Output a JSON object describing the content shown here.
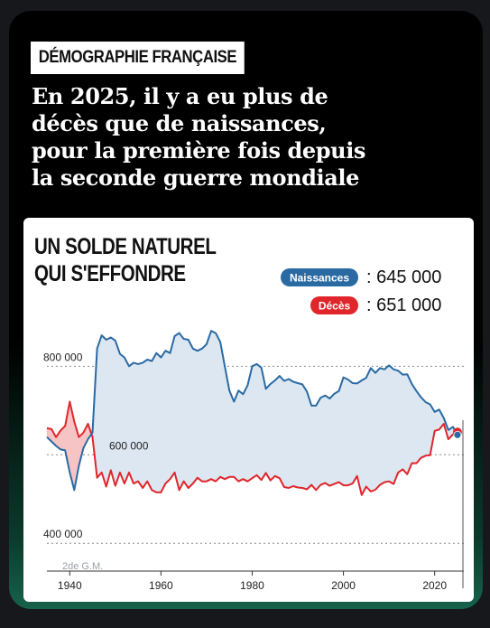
{
  "kicker": "DÉMOGRAPHIE FRANÇAISE",
  "headline": {
    "lines": [
      "En 2025, il y a eu plus de",
      "décès que de naissances,",
      "pour la première fois depuis",
      "la seconde guerre mondiale"
    ]
  },
  "colors": {
    "births": "#2a6aa3",
    "deaths": "#e0262b",
    "births_fill": "#dce7f1",
    "deaths_fill": "#f6c4c4",
    "background": "#000000",
    "card": "#ffffff"
  },
  "chart_data": {
    "type": "line",
    "title": [
      "UN SOLDE NATUREL",
      "QUI S'EFFONDRE"
    ],
    "annotation": "2de G.M.",
    "x": [
      1935,
      1936,
      1937,
      1938,
      1939,
      1940,
      1941,
      1942,
      1943,
      1944,
      1945,
      1946,
      1947,
      1948,
      1949,
      1950,
      1951,
      1952,
      1953,
      1954,
      1955,
      1956,
      1957,
      1958,
      1959,
      1960,
      1961,
      1962,
      1963,
      1964,
      1965,
      1966,
      1967,
      1968,
      1969,
      1970,
      1971,
      1972,
      1973,
      1974,
      1975,
      1976,
      1977,
      1978,
      1979,
      1980,
      1981,
      1982,
      1983,
      1984,
      1985,
      1986,
      1987,
      1988,
      1989,
      1990,
      1991,
      1992,
      1993,
      1994,
      1995,
      1996,
      1997,
      1998,
      1999,
      2000,
      2001,
      2002,
      2003,
      2004,
      2005,
      2006,
      2007,
      2008,
      2009,
      2010,
      2011,
      2012,
      2013,
      2014,
      2015,
      2016,
      2017,
      2018,
      2019,
      2020,
      2021,
      2022,
      2023,
      2024,
      2025
    ],
    "series": [
      {
        "name": "Naissances",
        "values": [
          640000,
          630000,
          620000,
          612000,
          610000,
          560000,
          520000,
          575000,
          615000,
          635000,
          650000,
          840000,
          870000,
          860000,
          865000,
          858000,
          828000,
          820000,
          800000,
          808000,
          805000,
          808000,
          815000,
          812000,
          830000,
          820000,
          835000,
          830000,
          868000,
          875000,
          862000,
          860000,
          840000,
          835000,
          840000,
          850000,
          880000,
          875000,
          855000,
          800000,
          745000,
          720000,
          745000,
          737000,
          757000,
          800000,
          805000,
          797000,
          749000,
          760000,
          768000,
          778000,
          767000,
          771000,
          765000,
          762000,
          759000,
          743000,
          711000,
          711000,
          729000,
          734000,
          727000,
          738000,
          744000,
          775000,
          770000,
          762000,
          761000,
          768000,
          774000,
          796000,
          785000,
          796000,
          793000,
          802000,
          793000,
          790000,
          781000,
          782000,
          760000,
          744000,
          730000,
          719000,
          714000,
          697000,
          702000,
          683000,
          656000,
          663000,
          645000
        ]
      },
      {
        "name": "Décès",
        "values": [
          660000,
          658000,
          640000,
          655000,
          665000,
          720000,
          675000,
          640000,
          650000,
          670000,
          640000,
          548000,
          560000,
          528000,
          565000,
          530000,
          560000,
          535000,
          560000,
          535000,
          540000,
          525000,
          540000,
          520000,
          515000,
          515000,
          535000,
          545000,
          560000,
          520000,
          540000,
          525000,
          535000,
          548000,
          540000,
          540000,
          545000,
          540000,
          550000,
          545000,
          550000,
          550000,
          540000,
          545000,
          540000,
          547000,
          554000,
          543000,
          559000,
          542000,
          552000,
          547000,
          527000,
          525000,
          529000,
          526000,
          525000,
          522000,
          532000,
          520000,
          532000,
          536000,
          530000,
          534000,
          538000,
          531000,
          531000,
          535000,
          552000,
          509000,
          528000,
          517000,
          521000,
          532000,
          538000,
          540000,
          534000,
          560000,
          567000,
          556000,
          581000,
          581000,
          593000,
          598000,
          599000,
          654000,
          657000,
          670000,
          635000,
          646000,
          651000
        ]
      }
    ],
    "legend": [
      {
        "series": "Naissances",
        "label": "Naissances",
        "value": ": 645 000"
      },
      {
        "series": "Décès",
        "label": "Décès",
        "value": ": 651 000"
      }
    ],
    "ylim": [
      380000,
      960000
    ],
    "yticks": [
      400000,
      600000,
      800000
    ],
    "ytick_labels": [
      "400 000",
      "600 000",
      "800 000"
    ],
    "xlim": [
      1935,
      2026
    ],
    "xticks": [
      1940,
      1960,
      1980,
      2000,
      2020
    ],
    "xtick_labels": [
      "1940",
      "1960",
      "1980",
      "2000",
      "2020"
    ],
    "grid": "dotted horizontal",
    "legend_position": "top-right"
  }
}
